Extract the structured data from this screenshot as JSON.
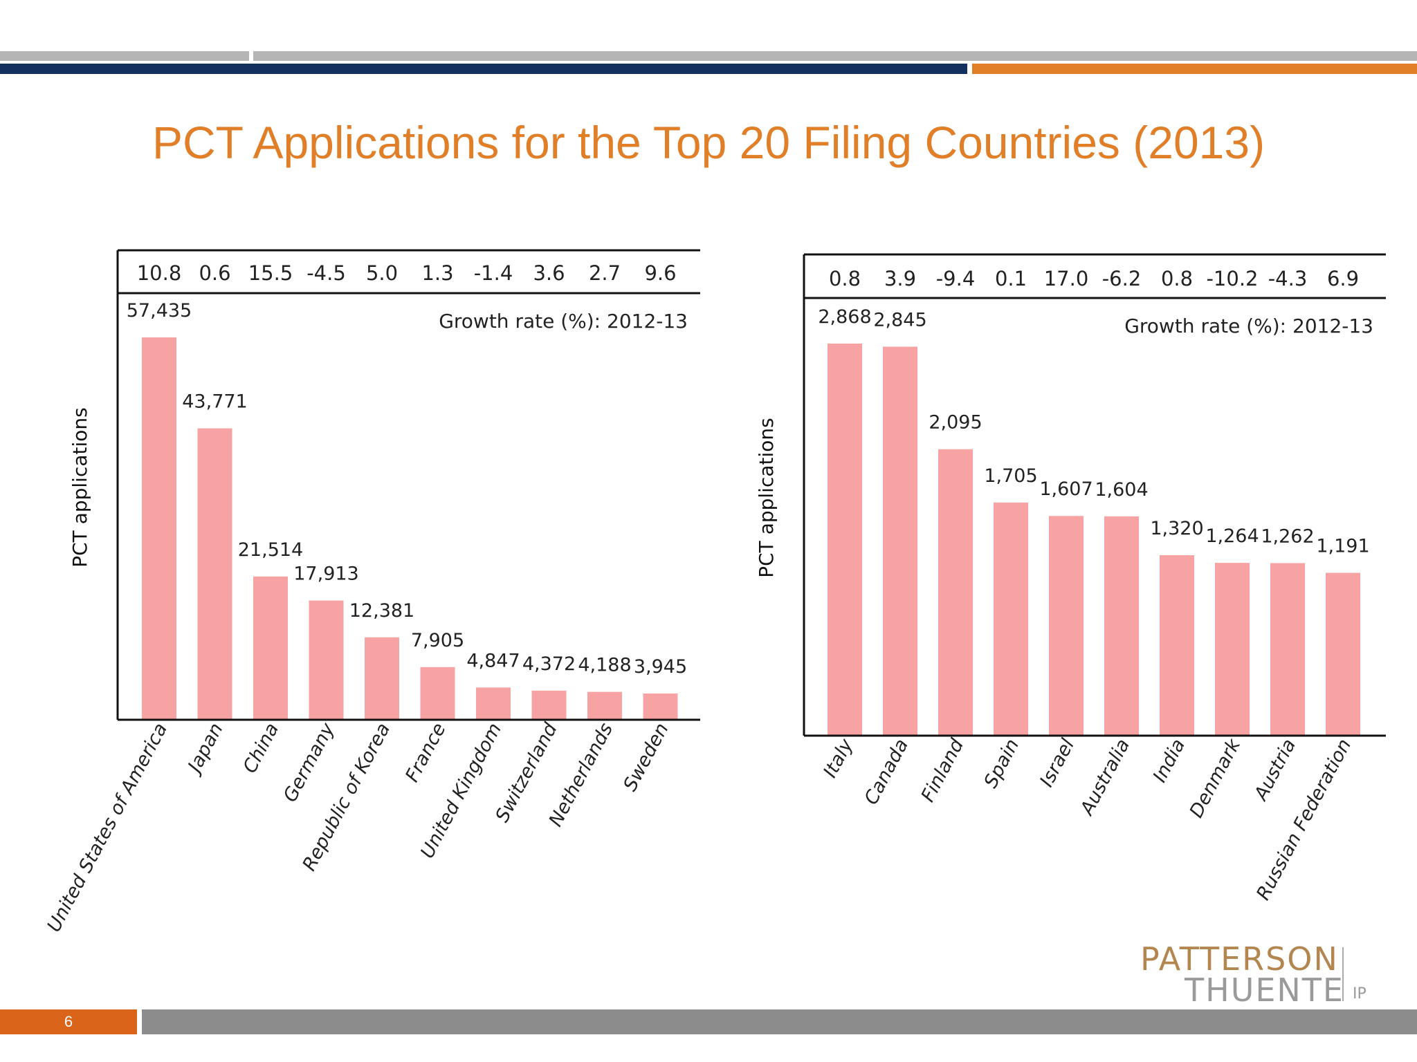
{
  "slide": {
    "title": "PCT Applications for the Top 20 Filing Countries (2013)",
    "page_number": "6",
    "logo": {
      "line1": "PATTERSON",
      "line2": "THUENTE",
      "suffix": "IP"
    },
    "colors": {
      "title": "#e07f28",
      "navy": "#14305e",
      "orange": "#e07f28",
      "gray": "#b5b5b5",
      "bar": "#f8a3a3"
    }
  },
  "chart_data": [
    {
      "type": "bar",
      "ylabel": "PCT applications",
      "growth_label": "Growth rate (%): 2012-13",
      "categories": [
        "United States of America",
        "Japan",
        "China",
        "Germany",
        "Republic of Korea",
        "France",
        "United Kingdom",
        "Switzerland",
        "Netherlands",
        "Sweden"
      ],
      "values": [
        57435,
        43771,
        21514,
        17913,
        12381,
        7905,
        4847,
        4372,
        4188,
        3945
      ],
      "value_labels": [
        "57,435",
        "43,771",
        "21,514",
        "17,913",
        "12,381",
        "7,905",
        "4,847",
        "4,372",
        "4,188",
        "3,945"
      ],
      "growth_rates": [
        "10.8",
        "0.6",
        "15.5",
        "-4.5",
        "5.0",
        "1.3",
        "-1.4",
        "3.6",
        "2.7",
        "9.6"
      ],
      "ylim": [
        0,
        62000
      ],
      "grid": false
    },
    {
      "type": "bar",
      "ylabel": "PCT applications",
      "growth_label": "Growth rate (%): 2012-13",
      "categories": [
        "Italy",
        "Canada",
        "Finland",
        "Spain",
        "Israel",
        "Australia",
        "India",
        "Denmark",
        "Austria",
        "Russian Federation"
      ],
      "values": [
        2868,
        2845,
        2095,
        1705,
        1607,
        1604,
        1320,
        1264,
        1262,
        1191
      ],
      "value_labels": [
        "2,868",
        "2,845",
        "2,095",
        "1,705",
        "1,607",
        "1,604",
        "1,320",
        "1,264",
        "1,262",
        "1,191"
      ],
      "growth_rates": [
        "0.8",
        "3.9",
        "-9.4",
        "0.1",
        "17.0",
        "-6.2",
        "0.8",
        "-10.2",
        "-4.3",
        "6.9"
      ],
      "ylim": [
        0,
        3100
      ],
      "grid": false
    }
  ]
}
